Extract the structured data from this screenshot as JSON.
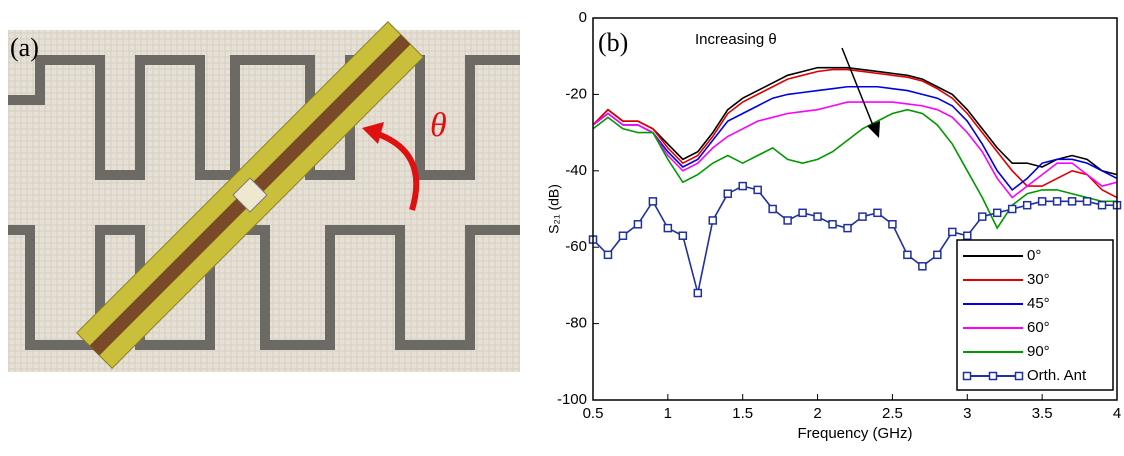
{
  "panel_a": {
    "label": "(a)",
    "angle_label": "θ"
  },
  "chart_data": {
    "type": "line",
    "panel_label": "(b)",
    "annotation": "Increasing θ",
    "xlabel": "Frequency (GHz)",
    "ylabel": "S₂₁ (dB)",
    "xlim": [
      0.5,
      4
    ],
    "xticks": [
      0.5,
      1,
      1.5,
      2,
      2.5,
      3,
      3.5,
      4
    ],
    "ylim": [
      -100,
      0
    ],
    "yticks": [
      -100,
      -80,
      -60,
      -40,
      -20,
      0
    ],
    "legend": "lower right",
    "x": [
      0.5,
      0.6,
      0.7,
      0.8,
      0.9,
      1.0,
      1.1,
      1.2,
      1.3,
      1.4,
      1.5,
      1.6,
      1.7,
      1.8,
      1.9,
      2.0,
      2.1,
      2.2,
      2.3,
      2.4,
      2.5,
      2.6,
      2.7,
      2.8,
      2.9,
      3.0,
      3.1,
      3.2,
      3.3,
      3.4,
      3.5,
      3.6,
      3.7,
      3.8,
      3.9,
      4.0
    ],
    "series": [
      {
        "name": "0°",
        "color": "#000000",
        "values": [
          -28,
          -24,
          -27,
          -27,
          -29,
          -33,
          -37,
          -35,
          -30,
          -24,
          -21,
          -19,
          -17,
          -15,
          -14,
          -13,
          -13,
          -13,
          -13.5,
          -14,
          -14.5,
          -15,
          -16,
          -18,
          -20,
          -24,
          -29,
          -34,
          -38,
          -38,
          -39,
          -37,
          -36,
          -37,
          -40,
          -41
        ]
      },
      {
        "name": "30°",
        "color": "#e00000",
        "values": [
          -28,
          -24,
          -27,
          -27,
          -29,
          -34,
          -38,
          -36,
          -31,
          -25,
          -22,
          -20,
          -18,
          -16,
          -15,
          -14,
          -13.5,
          -13.5,
          -14,
          -14.5,
          -15,
          -15.5,
          -16.5,
          -18.5,
          -21,
          -25,
          -30,
          -35,
          -40,
          -44,
          -44,
          -42,
          -40,
          -41,
          -45,
          -47
        ]
      },
      {
        "name": "45°",
        "color": "#0000e0",
        "values": [
          -28,
          -25,
          -28,
          -28,
          -30,
          -35,
          -39,
          -37,
          -32,
          -27,
          -25,
          -23,
          -21,
          -20,
          -19.5,
          -19,
          -18.5,
          -18,
          -18,
          -18,
          -18.5,
          -19,
          -20,
          -21,
          -23,
          -27,
          -33,
          -40,
          -45,
          -42,
          -38,
          -37,
          -37,
          -38,
          -40,
          -42
        ]
      },
      {
        "name": "60°",
        "color": "#ff00ff",
        "values": [
          -28,
          -25,
          -28,
          -28,
          -30,
          -36,
          -40,
          -38,
          -34,
          -31,
          -29,
          -27,
          -26,
          -25,
          -24.5,
          -24,
          -23,
          -22,
          -22,
          -22,
          -22,
          -22.5,
          -23,
          -24,
          -26,
          -30,
          -35,
          -42,
          -47,
          -44,
          -41,
          -38,
          -38,
          -41,
          -44,
          -43
        ]
      },
      {
        "name": "90°",
        "color": "#009900",
        "values": [
          -29,
          -26,
          -29,
          -30,
          -30,
          -37,
          -43,
          -41,
          -38,
          -36,
          -38,
          -36,
          -34,
          -37,
          -38,
          -37,
          -35,
          -32,
          -29,
          -27,
          -25,
          -24,
          -25,
          -28,
          -33,
          -40,
          -47,
          -55,
          -49,
          -46,
          -45,
          -45,
          -46,
          -47,
          -48,
          -48
        ]
      },
      {
        "name": "Orth. Ant",
        "color": "#2030a0",
        "marker": "square",
        "values": [
          -58,
          -62,
          -57,
          -54,
          -48,
          -55,
          -57,
          -72,
          -53,
          -46,
          -44,
          -45,
          -50,
          -53,
          -51,
          -52,
          -54,
          -55,
          -52,
          -51,
          -54,
          -62,
          -65,
          -62,
          -56,
          -57,
          -52,
          -51,
          -50,
          -49,
          -48,
          -48,
          -48,
          -48,
          -49,
          -49
        ]
      }
    ]
  }
}
